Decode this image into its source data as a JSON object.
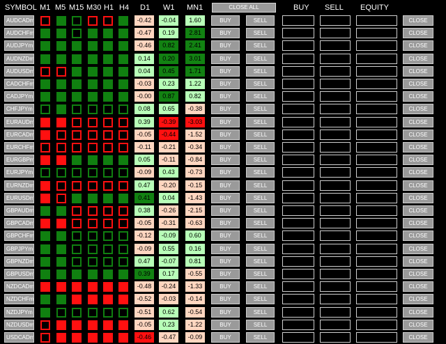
{
  "header": {
    "symbol": "SYMBOL",
    "timeframes": [
      "M1",
      "M5",
      "M15",
      "M30",
      "H1",
      "H4"
    ],
    "d1": "D1",
    "w1": "W1",
    "mn1": "MN1",
    "close_all": "CLOSE ALL",
    "buy": "BUY",
    "sell": "SELL",
    "equity": "EQUITY"
  },
  "labels": {
    "buy": "BUY",
    "sell": "SELL",
    "close": "CLOSE"
  },
  "legend": {
    "signal_fill": {
      "up": "#108010",
      "down": "#ff1010"
    },
    "value_colors": {
      "dg": "#128212",
      "lg": "#b8ffb8",
      "pk": "#ffd6c0",
      "rd": "#ff1010"
    }
  },
  "rows": [
    {
      "symbol": "AUDCADm",
      "signals": [
        "dn-h",
        "up-f",
        "up-h",
        "dn-h",
        "dn-h",
        "up-f"
      ],
      "d1": "-0.42",
      "d1c": "pk",
      "w1": "-0.04",
      "w1c": "lg",
      "mn1": "1.60",
      "mn1c": "lg"
    },
    {
      "symbol": "AUDCHFm",
      "signals": [
        "up-f",
        "up-f",
        "up-h",
        "up-f",
        "up-f",
        "up-f"
      ],
      "d1": "-0.47",
      "d1c": "pk",
      "w1": "0.19",
      "w1c": "lg",
      "mn1": "2.81",
      "mn1c": "dg"
    },
    {
      "symbol": "AUDJPYm",
      "signals": [
        "up-f",
        "up-f",
        "up-f",
        "up-f",
        "up-f",
        "up-f"
      ],
      "d1": "-0.46",
      "d1c": "pk",
      "w1": "0.82",
      "w1c": "dg",
      "mn1": "2.41",
      "mn1c": "dg"
    },
    {
      "symbol": "AUDNZDm",
      "signals": [
        "up-f",
        "up-f",
        "up-f",
        "up-f",
        "up-f",
        "up-f"
      ],
      "d1": "0.14",
      "d1c": "lg",
      "w1": "0.20",
      "w1c": "dg",
      "mn1": "3.01",
      "mn1c": "dg"
    },
    {
      "symbol": "AUDUSDm",
      "signals": [
        "dn-h",
        "dn-h",
        "up-f",
        "up-f",
        "up-f",
        "up-f"
      ],
      "d1": "0.04",
      "d1c": "lg",
      "w1": "0.45",
      "w1c": "dg",
      "mn1": "1.71",
      "mn1c": "dg"
    },
    {
      "symbol": "CADCHFm",
      "signals": [
        "up-f",
        "up-f",
        "up-f",
        "up-f",
        "up-f",
        "up-f"
      ],
      "d1": "-0.03",
      "d1c": "pk",
      "w1": "0.23",
      "w1c": "lg",
      "mn1": "1.22",
      "mn1c": "lg"
    },
    {
      "symbol": "CADJPYm",
      "signals": [
        "up-f",
        "up-f",
        "up-f",
        "up-f",
        "up-f",
        "up-f"
      ],
      "d1": "-0.00",
      "d1c": "pk",
      "w1": "0.87",
      "w1c": "dg",
      "mn1": "0.82",
      "mn1c": "lg"
    },
    {
      "symbol": "CHFJPYm",
      "signals": [
        "up-h",
        "up-f",
        "up-h",
        "up-h",
        "up-h",
        "up-h"
      ],
      "d1": "0.08",
      "d1c": "lg",
      "w1": "0.65",
      "w1c": "lg",
      "mn1": "-0.38",
      "mn1c": "pk"
    },
    {
      "symbol": "EURAUDm",
      "signals": [
        "dn-f",
        "dn-f",
        "dn-h",
        "dn-h",
        "dn-h",
        "dn-h"
      ],
      "d1": "0.39",
      "d1c": "lg",
      "w1": "-0.39",
      "w1c": "rd",
      "mn1": "-3.03",
      "mn1c": "rd"
    },
    {
      "symbol": "EURCADm",
      "signals": [
        "dn-f",
        "dn-h",
        "dn-h",
        "dn-h",
        "dn-h",
        "dn-h"
      ],
      "d1": "-0.05",
      "d1c": "pk",
      "w1": "-0.44",
      "w1c": "rd",
      "mn1": "-1.52",
      "mn1c": "pk"
    },
    {
      "symbol": "EURCHFm",
      "signals": [
        "dn-h",
        "dn-h",
        "dn-h",
        "dn-h",
        "dn-h",
        "dn-h"
      ],
      "d1": "-0.11",
      "d1c": "pk",
      "w1": "-0.21",
      "w1c": "pk",
      "mn1": "-0.34",
      "mn1c": "pk"
    },
    {
      "symbol": "EURGBPm",
      "signals": [
        "dn-f",
        "dn-f",
        "up-f",
        "up-f",
        "up-f",
        "up-f"
      ],
      "d1": "0.05",
      "d1c": "lg",
      "w1": "-0.11",
      "w1c": "pk",
      "mn1": "-0.84",
      "mn1c": "pk"
    },
    {
      "symbol": "EURJPYm",
      "signals": [
        "up-h",
        "up-h",
        "up-h",
        "up-h",
        "up-h",
        "up-h"
      ],
      "d1": "-0.09",
      "d1c": "pk",
      "w1": "0.43",
      "w1c": "lg",
      "mn1": "-0.73",
      "mn1c": "pk"
    },
    {
      "symbol": "EURNZDm",
      "signals": [
        "dn-f",
        "dn-h",
        "dn-h",
        "dn-h",
        "dn-h",
        "dn-h"
      ],
      "d1": "0.47",
      "d1c": "lg",
      "w1": "-0.20",
      "w1c": "pk",
      "mn1": "-0.15",
      "mn1c": "pk"
    },
    {
      "symbol": "EURUSDm",
      "signals": [
        "dn-f",
        "dn-h",
        "up-f",
        "up-f",
        "up-f",
        "up-f"
      ],
      "d1": "0.41",
      "d1c": "dg",
      "w1": "0.04",
      "w1c": "lg",
      "mn1": "-1.43",
      "mn1c": "pk"
    },
    {
      "symbol": "GBPAUDm",
      "signals": [
        "up-f",
        "up-f",
        "dn-h",
        "dn-h",
        "dn-h",
        "dn-h"
      ],
      "d1": "0.38",
      "d1c": "lg",
      "w1": "-0.26",
      "w1c": "pk",
      "mn1": "-2.15",
      "mn1c": "pk"
    },
    {
      "symbol": "GBPCADm",
      "signals": [
        "dn-f",
        "dn-f",
        "dn-h",
        "dn-h",
        "dn-h",
        "dn-h"
      ],
      "d1": "-0.05",
      "d1c": "pk",
      "w1": "-0.31",
      "w1c": "pk",
      "mn1": "-0.63",
      "mn1c": "pk"
    },
    {
      "symbol": "GBPCHFm",
      "signals": [
        "up-f",
        "up-f",
        "up-h",
        "up-h",
        "up-h",
        "up-h"
      ],
      "d1": "-0.12",
      "d1c": "pk",
      "w1": "-0.09",
      "w1c": "lg",
      "mn1": "0.60",
      "mn1c": "lg"
    },
    {
      "symbol": "GBPJPYm",
      "signals": [
        "up-f",
        "up-f",
        "up-h",
        "up-h",
        "up-h",
        "up-h"
      ],
      "d1": "-0.09",
      "d1c": "pk",
      "w1": "0.55",
      "w1c": "lg",
      "mn1": "0.16",
      "mn1c": "lg"
    },
    {
      "symbol": "GBPNZDm",
      "signals": [
        "up-f",
        "up-f",
        "up-h",
        "up-h",
        "up-h",
        "up-h"
      ],
      "d1": "0.47",
      "d1c": "lg",
      "w1": "-0.07",
      "w1c": "lg",
      "mn1": "0.81",
      "mn1c": "lg"
    },
    {
      "symbol": "GBPUSDm",
      "signals": [
        "up-f",
        "up-f",
        "up-f",
        "up-f",
        "up-f",
        "up-f"
      ],
      "d1": "0.39",
      "d1c": "dg",
      "w1": "0.17",
      "w1c": "lg",
      "mn1": "-0.55",
      "mn1c": "pk"
    },
    {
      "symbol": "NZDCADm",
      "signals": [
        "dn-f",
        "dn-f",
        "dn-f",
        "dn-f",
        "dn-f",
        "dn-f"
      ],
      "d1": "-0.48",
      "d1c": "pk",
      "w1": "-0.24",
      "w1c": "pk",
      "mn1": "-1.33",
      "mn1c": "pk"
    },
    {
      "symbol": "NZDCHFm",
      "signals": [
        "up-f",
        "up-f",
        "dn-f",
        "dn-f",
        "dn-f",
        "dn-f"
      ],
      "d1": "-0.52",
      "d1c": "pk",
      "w1": "-0.03",
      "w1c": "pk",
      "mn1": "-0.14",
      "mn1c": "pk"
    },
    {
      "symbol": "NZDJPYm",
      "signals": [
        "up-f",
        "up-h",
        "up-h",
        "up-h",
        "up-h",
        "up-h"
      ],
      "d1": "-0.51",
      "d1c": "pk",
      "w1": "0.62",
      "w1c": "lg",
      "mn1": "-0.54",
      "mn1c": "pk"
    },
    {
      "symbol": "NZDUSDm",
      "signals": [
        "dn-h",
        "dn-f",
        "dn-f",
        "dn-f",
        "dn-f",
        "dn-f"
      ],
      "d1": "-0.05",
      "d1c": "pk",
      "w1": "0.23",
      "w1c": "lg",
      "mn1": "-1.22",
      "mn1c": "pk"
    },
    {
      "symbol": "USDCADm",
      "signals": [
        "dn-h",
        "dn-f",
        "dn-f",
        "dn-f",
        "dn-f",
        "dn-f"
      ],
      "d1": "-0.46",
      "d1c": "rd",
      "w1": "-0.47",
      "w1c": "pk",
      "mn1": "-0.09",
      "mn1c": "pk"
    }
  ]
}
